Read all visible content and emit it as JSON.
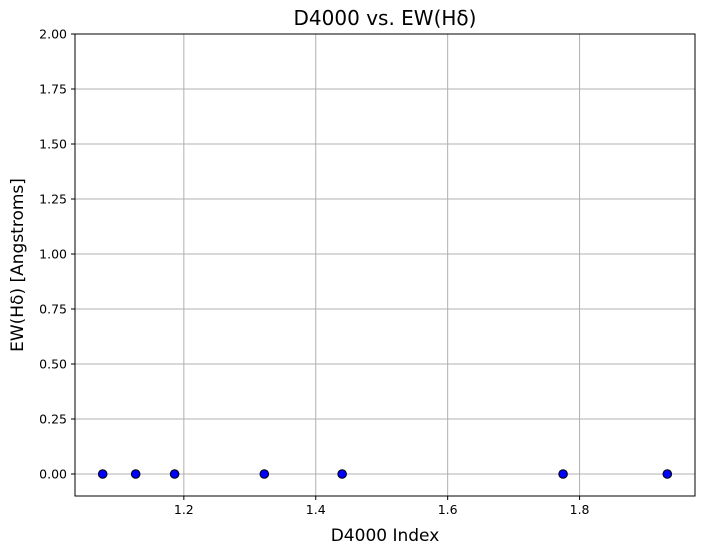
{
  "chart_data": {
    "type": "scatter",
    "title": "D4000 vs. EW(Hδ)",
    "xlabel": "D4000 Index",
    "ylabel": "EW(Hδ) [Angstroms]",
    "xlim": [
      1.035,
      1.975
    ],
    "ylim": [
      -0.1,
      2.0
    ],
    "xticks": [
      1.2,
      1.4,
      1.6,
      1.8
    ],
    "xtick_labels": [
      "1.2",
      "1.4",
      "1.6",
      "1.8"
    ],
    "yticks": [
      0.0,
      0.25,
      0.5,
      0.75,
      1.0,
      1.25,
      1.5,
      1.75,
      2.0
    ],
    "ytick_labels": [
      "0.00",
      "0.25",
      "0.50",
      "0.75",
      "1.00",
      "1.25",
      "1.50",
      "1.75",
      "2.00"
    ],
    "grid": true,
    "marker_fill": "#0000ff",
    "marker_edge": "#000000",
    "grid_color": "#b0b0b0",
    "points": [
      {
        "x": 1.077,
        "y": 0.0
      },
      {
        "x": 1.127,
        "y": 0.0
      },
      {
        "x": 1.186,
        "y": 0.0
      },
      {
        "x": 1.322,
        "y": 0.0
      },
      {
        "x": 1.44,
        "y": 0.0
      },
      {
        "x": 1.775,
        "y": 0.0
      },
      {
        "x": 1.933,
        "y": 0.0
      }
    ]
  }
}
